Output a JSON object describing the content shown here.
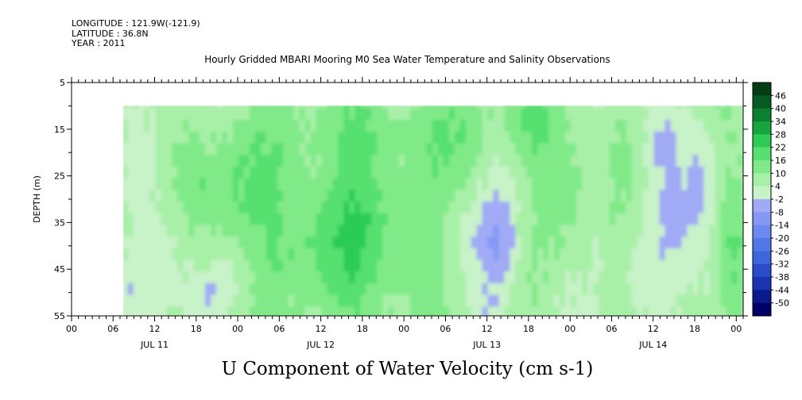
{
  "header": {
    "longitude": "LONGITUDE : 121.9W(-121.9)",
    "latitude": "LATITUDE : 36.8N",
    "year": "YEAR : 2011"
  },
  "chart_data": {
    "type": "heatmap",
    "title": "Hourly Gridded MBARI Mooring M0 Sea Water Temperature and Salinity Observations",
    "variable_label": "U Component of Water Velocity (cm s-1)",
    "ylabel": "DEPTH (m)",
    "ylim": [
      55,
      5
    ],
    "y_ticks": [
      5,
      15,
      25,
      35,
      45,
      55
    ],
    "y_minor_step": 5,
    "x_range_hours": [
      0,
      97
    ],
    "x_tick_labels": [
      "00",
      "06",
      "12",
      "18",
      "00",
      "06",
      "12",
      "18",
      "00",
      "06",
      "12",
      "18",
      "00",
      "06",
      "12",
      "18",
      "00"
    ],
    "x_day_labels": [
      "JUL 11",
      "JUL 12",
      "JUL 13",
      "JUL 14"
    ],
    "data_start_hour": 7.5,
    "data_depth_range": [
      10,
      55
    ],
    "colorbar": {
      "levels": [
        -50,
        -44,
        -38,
        -32,
        -26,
        -20,
        -14,
        -8,
        -2,
        4,
        10,
        16,
        22,
        28,
        34,
        40,
        46
      ],
      "labels": [
        "46",
        "40",
        "34",
        "28",
        "22",
        "16",
        "10",
        "4",
        "-2",
        "-8",
        "-14",
        "-20",
        "-26",
        "-32",
        "-38",
        "-44",
        "-50"
      ],
      "colors": [
        "#000066",
        "#0a1a8c",
        "#1a33b3",
        "#2a4ccc",
        "#3d66dd",
        "#5277e6",
        "#6a8aef",
        "#8399f5",
        "#a0aaf5",
        "#c8f2c8",
        "#a8f0a8",
        "#80ea88",
        "#55e070",
        "#2ccc55",
        "#16a640",
        "#0a8030",
        "#045c22",
        "#023d16"
      ]
    },
    "grid": "off",
    "legend": "right"
  }
}
